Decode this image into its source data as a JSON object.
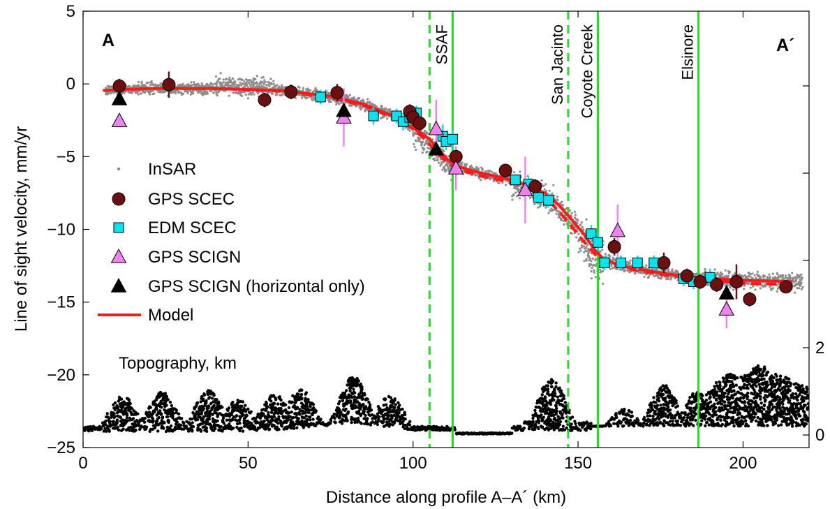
{
  "chart_data": {
    "type": "scatter",
    "title": "",
    "xlabel": "Distance along profile A–A´ (km)",
    "ylabel": "Line of sight velocity, mm/yr",
    "xlim": [
      0,
      220
    ],
    "ylim": [
      -25,
      5
    ],
    "x_ticks": [
      0,
      50,
      100,
      150,
      200
    ],
    "y_ticks": [
      5,
      0,
      -5,
      -10,
      -15,
      -20,
      -25
    ],
    "y2_ticks": [
      2,
      0
    ],
    "y2_range_km": [
      0,
      2.5
    ],
    "grid": false,
    "legend_placement": "left-middle",
    "profile_labels": {
      "start": "A",
      "end": "A´"
    },
    "topo_label": "Topography, km",
    "colors": {
      "insar": "#8c8c8c",
      "gps_scec": "#6b0f0f",
      "edm_scec": "#00e5ef",
      "gps_scign": "#ee82ee",
      "gps_scign_h": "#000000",
      "model": "#ff1a1a",
      "fault": "#22dd22"
    },
    "legend": [
      {
        "key": "insar",
        "label": "InSAR"
      },
      {
        "key": "gps_scec",
        "label": "GPS SCEC"
      },
      {
        "key": "edm_scec",
        "label": "EDM SCEC"
      },
      {
        "key": "gps_scign",
        "label": "GPS SCIGN"
      },
      {
        "key": "gps_scign_h",
        "label": "GPS SCIGN (horizontal only)"
      },
      {
        "key": "model",
        "label": "Model"
      }
    ],
    "faults": [
      {
        "name": "SSAF",
        "solid_x": 112,
        "dashed_x": 105
      },
      {
        "name": "San Jacinto",
        "dashed_x": 147
      },
      {
        "name": "Coyote Creek",
        "solid_x": 156
      },
      {
        "name": "Elsinore",
        "solid_x": 186.5
      }
    ],
    "model_solid": [
      [
        6,
        -0.45
      ],
      [
        20,
        -0.32
      ],
      [
        40,
        -0.32
      ],
      [
        60,
        -0.45
      ],
      [
        75,
        -0.85
      ],
      [
        85,
        -1.4
      ],
      [
        95,
        -2.3
      ],
      [
        100,
        -3.0
      ],
      [
        105,
        -3.8
      ],
      [
        108,
        -4.6
      ],
      [
        111,
        -5.3
      ],
      [
        114,
        -5.7
      ],
      [
        120,
        -6.1
      ],
      [
        128,
        -6.5
      ],
      [
        135,
        -7.0
      ],
      [
        140,
        -7.5
      ],
      [
        144,
        -8.3
      ],
      [
        148,
        -9.3
      ],
      [
        152,
        -10.4
      ],
      [
        155,
        -11.4
      ],
      [
        158,
        -12.1
      ],
      [
        165,
        -12.6
      ],
      [
        175,
        -13.0
      ],
      [
        185,
        -13.3
      ],
      [
        200,
        -13.5
      ],
      [
        215,
        -13.6
      ]
    ],
    "model_dashed": [
      [
        6,
        -0.45
      ],
      [
        20,
        -0.32
      ],
      [
        40,
        -0.32
      ],
      [
        60,
        -0.5
      ],
      [
        75,
        -0.95
      ],
      [
        85,
        -1.5
      ],
      [
        95,
        -2.4
      ],
      [
        100,
        -3.1
      ],
      [
        104,
        -3.9
      ],
      [
        108,
        -4.9
      ],
      [
        111,
        -5.5
      ],
      [
        114,
        -5.9
      ],
      [
        120,
        -6.3
      ],
      [
        128,
        -6.7
      ],
      [
        135,
        -7.2
      ],
      [
        140,
        -7.8
      ],
      [
        144,
        -8.7
      ],
      [
        148,
        -9.8
      ],
      [
        152,
        -10.9
      ],
      [
        155,
        -11.7
      ],
      [
        158,
        -12.3
      ],
      [
        165,
        -12.7
      ],
      [
        175,
        -13.1
      ],
      [
        185,
        -13.4
      ],
      [
        200,
        -13.7
      ],
      [
        215,
        -13.8
      ]
    ],
    "gps_scec": [
      [
        11,
        -0.15,
        0.5
      ],
      [
        26,
        -0.05,
        0.9
      ],
      [
        55,
        -1.1,
        0.5
      ],
      [
        63,
        -0.55,
        0.5
      ],
      [
        77,
        -0.6,
        0.6
      ],
      [
        99,
        -1.9,
        0.5
      ],
      [
        100,
        -2.3,
        0.6
      ],
      [
        102,
        -2.7,
        0.5
      ],
      [
        113,
        -5.0,
        0.7
      ],
      [
        128,
        -5.95,
        0.4
      ],
      [
        137,
        -7.05,
        0.5
      ],
      [
        161,
        -11.2,
        0.6
      ],
      [
        176,
        -12.3,
        0.7
      ],
      [
        183,
        -13.2,
        0.5
      ],
      [
        187,
        -13.6,
        0.5
      ],
      [
        192,
        -13.8,
        0.5
      ],
      [
        198,
        -13.6,
        1.2
      ],
      [
        202,
        -14.8,
        0.5
      ],
      [
        213,
        -13.95,
        0.4
      ]
    ],
    "edm_scec": [
      [
        72,
        -0.9,
        0.5
      ],
      [
        88,
        -2.2,
        0.6
      ],
      [
        95,
        -2.2,
        0.5
      ],
      [
        97,
        -2.6,
        0.6
      ],
      [
        99,
        -2.3,
        0.5
      ],
      [
        101,
        -2.0,
        0.5
      ],
      [
        109,
        -3.6,
        0.8
      ],
      [
        110,
        -3.95,
        0.6
      ],
      [
        112,
        -3.8,
        0.6
      ],
      [
        131,
        -6.6,
        0.4
      ],
      [
        135,
        -6.9,
        0.5
      ],
      [
        138,
        -7.8,
        0.5
      ],
      [
        141,
        -8.0,
        0.5
      ],
      [
        154,
        -10.3,
        0.6
      ],
      [
        156,
        -10.9,
        0.6
      ],
      [
        158,
        -12.3,
        0.5
      ],
      [
        163,
        -12.3,
        0.5
      ],
      [
        168,
        -12.3,
        0.5
      ],
      [
        173,
        -12.3,
        0.5
      ],
      [
        182,
        -13.4,
        0.5
      ],
      [
        185,
        -13.6,
        0.5
      ],
      [
        190,
        -13.3,
        0.6
      ]
    ],
    "gps_scign": [
      [
        11,
        -2.55,
        0.3
      ],
      [
        79,
        -2.3,
        2.0
      ],
      [
        107,
        -3.1,
        2.0
      ],
      [
        113,
        -5.8,
        1.5
      ],
      [
        134,
        -7.3,
        2.3
      ],
      [
        162,
        -10.1,
        1.8
      ],
      [
        195,
        -15.5,
        1.3
      ]
    ],
    "gps_scign_h": [
      [
        11,
        -1.05
      ],
      [
        79,
        -1.85
      ],
      [
        107,
        -4.5
      ],
      [
        195,
        -14.4
      ]
    ]
  }
}
